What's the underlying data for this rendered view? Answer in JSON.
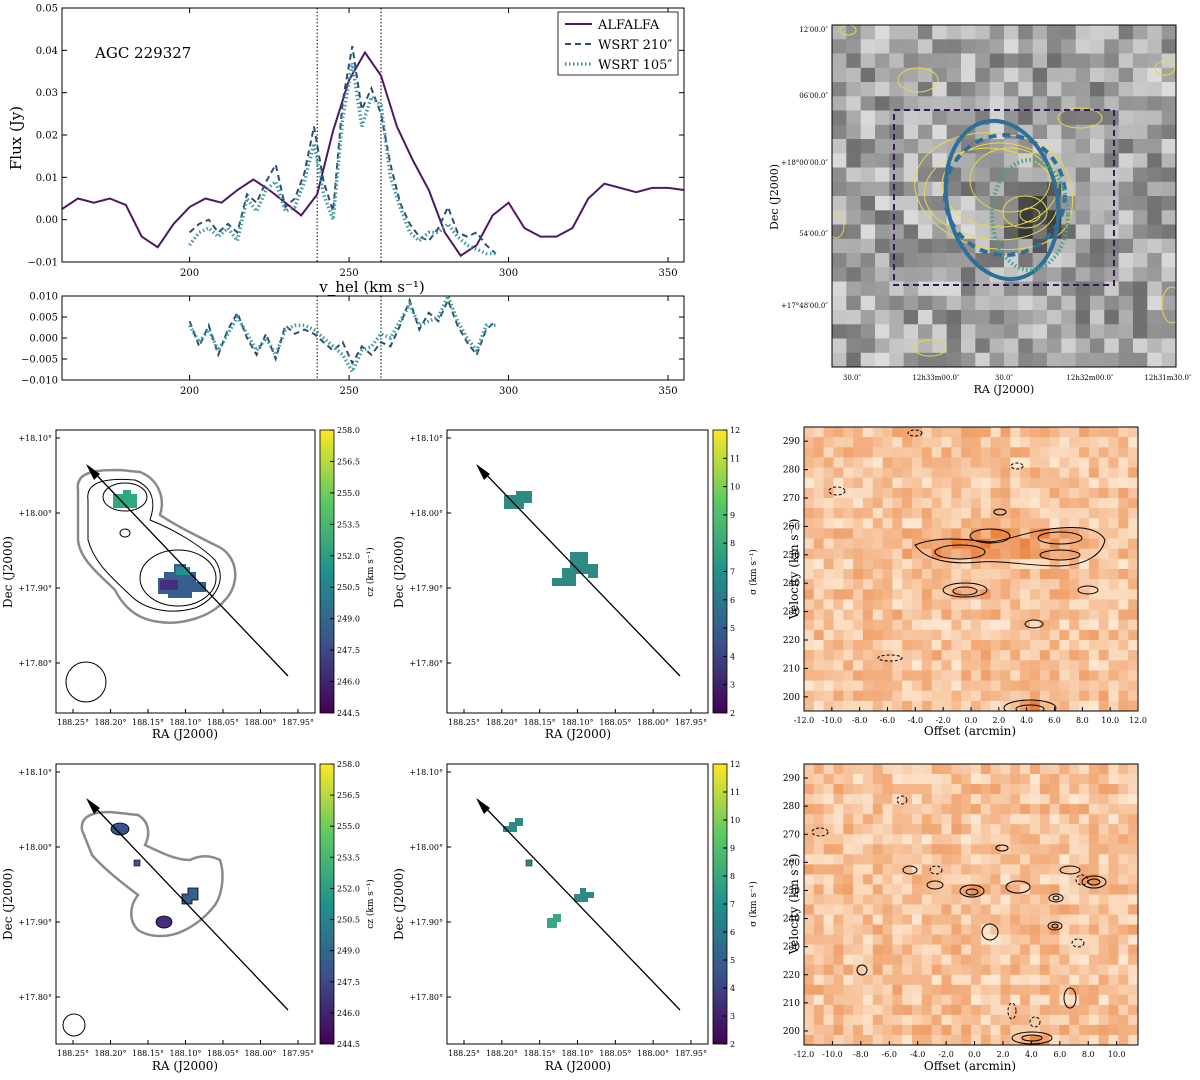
{
  "chart_data": [
    {
      "id": "spectrum",
      "type": "line",
      "annotation": "AGC 229327",
      "ylabel": "Flux (Jy)",
      "xlabel": "v_hel (km s⁻¹)",
      "xlim": [
        160,
        355
      ],
      "ylim": [
        -0.01,
        0.05
      ],
      "x_ticks": [
        "200",
        "250",
        "300",
        "350"
      ],
      "y_ticks": [
        "−0.01",
        "0.00",
        "0.01",
        "0.02",
        "0.03",
        "0.04",
        "0.05"
      ],
      "vlines": [
        240,
        260
      ],
      "legend": [
        "ALFALFA",
        "WSRT 210″",
        "WSRT 105″"
      ],
      "series": [
        {
          "name": "ALFALFA",
          "color": "#4b1a63",
          "style": "solid",
          "x": [
            160,
            165,
            170,
            175,
            180,
            185,
            190,
            195,
            200,
            205,
            210,
            215,
            220,
            225,
            230,
            235,
            240,
            245,
            250,
            255,
            260,
            265,
            270,
            275,
            280,
            285,
            290,
            295,
            300,
            305,
            310,
            315,
            320,
            325,
            330,
            335,
            340,
            345,
            350,
            355
          ],
          "y": [
            0.0025,
            0.005,
            0.004,
            0.005,
            0.0035,
            -0.004,
            -0.0065,
            -0.001,
            0.003,
            0.005,
            0.004,
            0.007,
            0.0095,
            0.007,
            0.004,
            0.001,
            0.006,
            0.021,
            0.033,
            0.0395,
            0.034,
            0.022,
            0.014,
            0.007,
            -0.003,
            -0.0085,
            -0.006,
            0.001,
            0.004,
            -0.002,
            -0.004,
            -0.004,
            -0.002,
            0.005,
            0.0085,
            0.0075,
            0.0065,
            0.0075,
            0.0075,
            0.007
          ]
        },
        {
          "name": "WSRT 210″",
          "color": "#2b4f73",
          "style": "dashed",
          "x": [
            200,
            203,
            206,
            209,
            212,
            215,
            218,
            221,
            224,
            227,
            230,
            233,
            236,
            239,
            242,
            245,
            248,
            251,
            254,
            257,
            260,
            263,
            266,
            269,
            272,
            275,
            278,
            281,
            284,
            287,
            290,
            293,
            296
          ],
          "y": [
            -0.003,
            -0.001,
            0.0,
            -0.003,
            -0.001,
            -0.003,
            0.006,
            0.004,
            0.009,
            0.013,
            0.003,
            0.005,
            0.011,
            0.022,
            0.009,
            0.002,
            0.028,
            0.041,
            0.026,
            0.031,
            0.025,
            0.013,
            0.004,
            -0.001,
            -0.004,
            -0.005,
            -0.002,
            0.003,
            -0.003,
            -0.004,
            -0.003,
            -0.006,
            -0.008
          ]
        },
        {
          "name": "WSRT 105″",
          "color": "#3f96a0",
          "style": "dotted",
          "x": [
            200,
            203,
            206,
            209,
            212,
            215,
            218,
            221,
            224,
            227,
            230,
            233,
            236,
            239,
            242,
            245,
            248,
            251,
            254,
            257,
            260,
            263,
            266,
            269,
            272,
            275,
            278,
            281,
            284,
            287,
            290,
            293,
            296
          ],
          "y": [
            -0.006,
            -0.003,
            -0.002,
            -0.004,
            -0.002,
            -0.005,
            0.005,
            0.002,
            0.007,
            0.009,
            0.002,
            0.003,
            0.009,
            0.018,
            0.006,
            0.0,
            0.024,
            0.037,
            0.022,
            0.029,
            0.027,
            0.01,
            0.003,
            -0.003,
            -0.005,
            -0.003,
            -0.003,
            -0.001,
            -0.004,
            -0.006,
            -0.007,
            -0.008,
            -0.008
          ]
        }
      ]
    },
    {
      "id": "residuals",
      "type": "line",
      "xlim": [
        160,
        355
      ],
      "ylim": [
        -0.01,
        0.01
      ],
      "x_ticks": [
        "200",
        "250",
        "300",
        "350"
      ],
      "y_ticks": [
        "−0.010",
        "−0.005",
        "0.000",
        "0.005",
        "0.010"
      ],
      "vlines": [
        240,
        260
      ],
      "series": [
        {
          "name": "WSRT 210″ residual",
          "color": "#2b4f73",
          "style": "dashed",
          "x": [
            200,
            203,
            206,
            209,
            212,
            215,
            218,
            221,
            224,
            227,
            230,
            233,
            236,
            239,
            242,
            245,
            248,
            251,
            254,
            257,
            260,
            263,
            266,
            269,
            272,
            275,
            278,
            281,
            284,
            287,
            290,
            293,
            296
          ],
          "y": [
            0.004,
            -0.002,
            0.003,
            -0.004,
            0.002,
            0.006,
            0.0,
            -0.004,
            0.001,
            -0.005,
            0.003,
            0.001,
            0.002,
            0.001,
            -0.001,
            -0.003,
            -0.001,
            -0.006,
            -0.002,
            -0.004,
            -0.001,
            -0.002,
            0.003,
            0.009,
            0.002,
            0.006,
            0.004,
            0.009,
            0.003,
            -0.001,
            -0.004,
            0.002,
            0.004
          ]
        },
        {
          "name": "WSRT 105″ residual",
          "color": "#3f96a0",
          "style": "dotted",
          "x": [
            200,
            203,
            206,
            209,
            212,
            215,
            218,
            221,
            224,
            227,
            230,
            233,
            236,
            239,
            242,
            245,
            248,
            251,
            254,
            257,
            260,
            263,
            266,
            269,
            272,
            275,
            278,
            281,
            284,
            287,
            290,
            293,
            296
          ],
          "y": [
            0.003,
            -0.001,
            0.002,
            -0.003,
            0.001,
            0.005,
            0.001,
            -0.003,
            0.0,
            -0.004,
            0.002,
            0.003,
            0.003,
            0.002,
            0.0,
            -0.002,
            -0.004,
            -0.008,
            -0.003,
            -0.002,
            0.001,
            0.0,
            0.004,
            0.008,
            0.003,
            0.004,
            0.005,
            0.01,
            0.004,
            0.0,
            -0.003,
            0.003,
            0.003
          ]
        }
      ]
    },
    {
      "id": "overlay-map",
      "type": "heatmap",
      "xlabel": "RA (J2000)",
      "ylabel": "Dec (J2000)",
      "x_ticks": [
        "30.0″",
        "12h33m00.0″",
        "30.0″",
        "12h32m00.0″",
        "12h31m30.0″"
      ],
      "y_ticks": [
        "12′00.0″",
        "06′00.0″",
        "+18°00′00.0″",
        "54′00.0″",
        "+17°48′00.0″"
      ]
    },
    {
      "id": "velocity-field-210",
      "type": "heatmap",
      "xlabel": "RA (J2000)",
      "ylabel": "Dec (J2000)",
      "x_ticks": [
        "188.25°",
        "188.20°",
        "188.15°",
        "188.10°",
        "188.05°",
        "188.00°",
        "187.95°"
      ],
      "y_ticks": [
        "+18.10°",
        "+18.00°",
        "+17.90°",
        "+17.80°"
      ],
      "colorbar_label": "cz (km s⁻¹)",
      "colorbar_ticks": [
        "258.0",
        "256.5",
        "255.0",
        "253.5",
        "252.0",
        "250.5",
        "249.0",
        "247.5",
        "246.0",
        "244.5"
      ],
      "clim": [
        244.5,
        258.0
      ]
    },
    {
      "id": "dispersion-210",
      "type": "heatmap",
      "xlabel": "RA (J2000)",
      "ylabel": "Dec (J2000)",
      "x_ticks": [
        "188.25°",
        "188.20°",
        "188.15°",
        "188.10°",
        "188.05°",
        "188.00°",
        "187.95°"
      ],
      "y_ticks": [
        "+18.10°",
        "+18.00°",
        "+17.90°",
        "+17.80°"
      ],
      "colorbar_label": "σ (km s⁻¹)",
      "colorbar_ticks": [
        "12",
        "11",
        "10",
        "9",
        "8",
        "7",
        "6",
        "5",
        "4",
        "3",
        "2"
      ],
      "clim": [
        2,
        12
      ]
    },
    {
      "id": "pv-210",
      "type": "heatmap",
      "xlabel": "Offset (arcmin)",
      "ylabel": "Velocity (km s⁻¹)",
      "x_ticks": [
        "-12.0",
        "-10.0",
        "-8.0",
        "-6.0",
        "-4.0",
        "-2.0",
        "0.0",
        "2.0",
        "4.0",
        "6.0",
        "8.0",
        "10.0",
        "12.0"
      ],
      "y_ticks": [
        "290",
        "280",
        "270",
        "260",
        "250",
        "240",
        "230",
        "220",
        "210",
        "200"
      ],
      "xlim": [
        -12,
        12
      ],
      "ylim": [
        195,
        295
      ]
    },
    {
      "id": "velocity-field-105",
      "type": "heatmap",
      "xlabel": "RA (J2000)",
      "ylabel": "Dec (J2000)",
      "x_ticks": [
        "188.25°",
        "188.20°",
        "188.15°",
        "188.10°",
        "188.05°",
        "188.00°",
        "187.95°"
      ],
      "y_ticks": [
        "+18.10°",
        "+18.00°",
        "+17.90°",
        "+17.80°"
      ],
      "colorbar_label": "cz (km s⁻¹)",
      "colorbar_ticks": [
        "258.0",
        "256.5",
        "255.0",
        "253.5",
        "252.0",
        "250.5",
        "249.0",
        "247.5",
        "246.0",
        "244.5"
      ],
      "clim": [
        244.5,
        258.0
      ]
    },
    {
      "id": "dispersion-105",
      "type": "heatmap",
      "xlabel": "RA (J2000)",
      "ylabel": "Dec (J2000)",
      "x_ticks": [
        "188.25°",
        "188.20°",
        "188.15°",
        "188.10°",
        "188.05°",
        "188.00°",
        "187.95°"
      ],
      "y_ticks": [
        "+18.10°",
        "+18.00°",
        "+17.90°",
        "+17.80°"
      ],
      "colorbar_label": "σ (km s⁻¹)",
      "colorbar_ticks": [
        "12",
        "11",
        "10",
        "9",
        "8",
        "7",
        "6",
        "5",
        "4",
        "3",
        "2"
      ],
      "clim": [
        2,
        12
      ]
    },
    {
      "id": "pv-105",
      "type": "heatmap",
      "xlabel": "Offset (arcmin)",
      "ylabel": "Velocity (km s⁻¹)",
      "x_ticks": [
        "-12.0",
        "-10.0",
        "-8.0",
        "-6.0",
        "-4.0",
        "-2.0",
        "0.0",
        "2.0",
        "4.0",
        "6.0",
        "8.0",
        "10.0"
      ],
      "y_ticks": [
        "290",
        "280",
        "270",
        "260",
        "250",
        "240",
        "230",
        "220",
        "210",
        "200"
      ],
      "xlim": [
        -12,
        11.5
      ],
      "ylim": [
        195,
        295
      ]
    }
  ],
  "colors": {
    "alfalfa": "#4b1a63",
    "wsrt210": "#2b4f73",
    "wsrt105": "#3f96a0",
    "contour_yellow": "#e8d84a",
    "box": "#3a1a55",
    "beam": "#2e6f9a",
    "pv_light": "#fde6cf",
    "pv_dark": "#e8752a"
  }
}
